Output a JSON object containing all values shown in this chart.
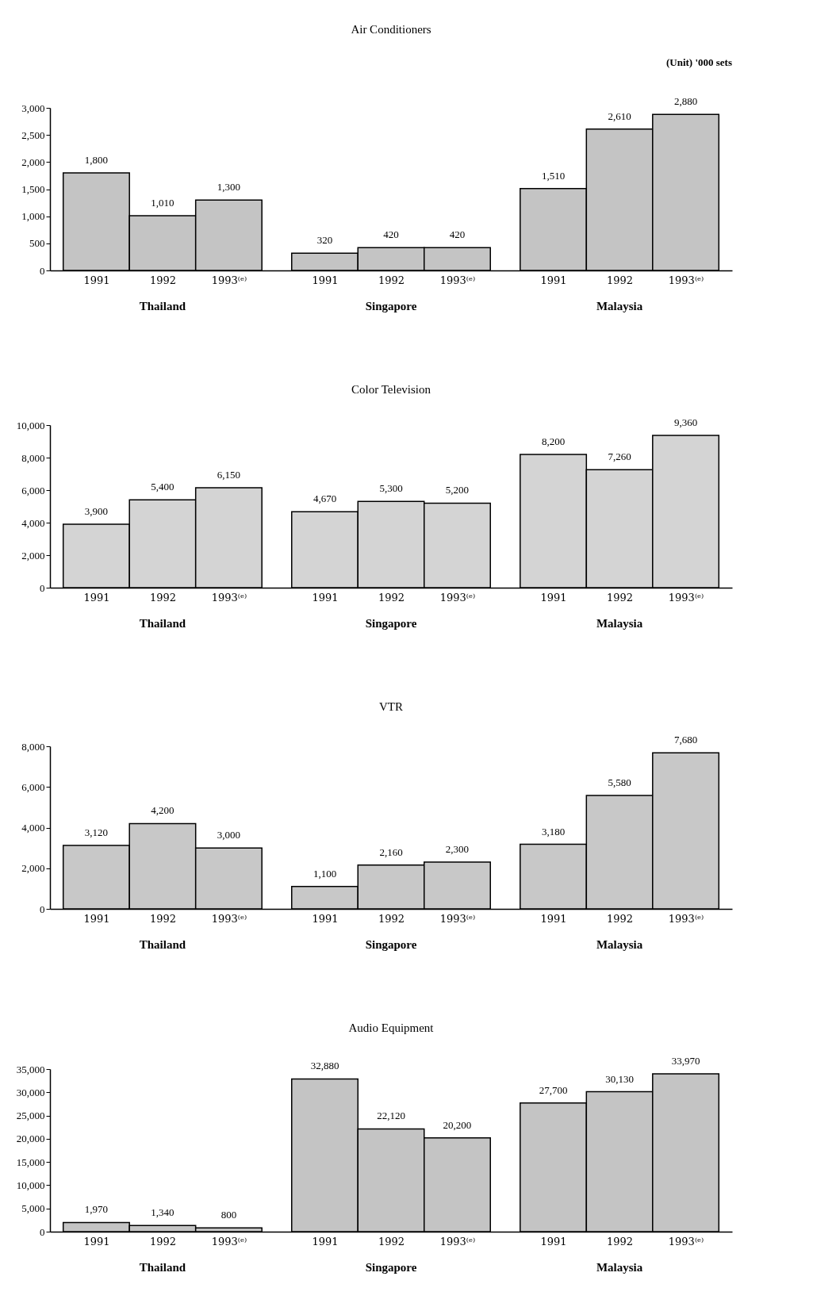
{
  "chart_data": [
    {
      "type": "bar",
      "title": "Air Conditioners",
      "subtitle": "(Unit) '000 sets",
      "categories": [
        "1991",
        "1992",
        "1993⁽ᵉ⁾",
        "1991",
        "1992",
        "1993⁽ᵉ⁾",
        "1991",
        "1992",
        "1993⁽ᵉ⁾"
      ],
      "values": [
        1800,
        1010,
        1300,
        320,
        420,
        420,
        1510,
        2610,
        2880
      ],
      "value_labels": [
        "1,800",
        "1,010",
        "1,300",
        "320",
        "420",
        "420",
        "1,510",
        "2,610",
        "2,880"
      ],
      "color": "#c4c4c4",
      "ylim": [
        0,
        3000
      ],
      "yticks": [
        {
          "value": 0,
          "label": "0"
        },
        500,
        {
          "value": 1000,
          "label": "1,000"
        },
        {
          "value": 1500,
          "label": "1,500"
        },
        {
          "value": 2000,
          "label": "2,000"
        },
        {
          "value": 2500,
          "label": "2,500"
        },
        {
          "value": 3000,
          "label": "3,000"
        }
      ],
      "annotations": [
        "Thailand",
        "Singapore",
        "Malaysia"
      ]
    },
    {
      "type": "bar",
      "title": "Color Television",
      "categories": [
        "1991",
        "1992",
        "1993⁽ᵉ⁾",
        "1991",
        "1992",
        "1993⁽ᵉ⁾",
        "1991",
        "1992",
        "1993⁽ᵉ⁾"
      ],
      "values": [
        3900,
        5400,
        6150,
        4670,
        5300,
        5200,
        8200,
        7260,
        9360
      ],
      "value_labels": [
        "3,900",
        "5,400",
        "6,150",
        "4,670",
        "5,300",
        "5,200",
        "8,200",
        "7,260",
        "9,360"
      ],
      "color": "#d4d4d4",
      "ylim": [
        0,
        10000
      ],
      "yticks": [
        {
          "value": 0,
          "label": "0"
        },
        {
          "value": 2000,
          "label": "2,000"
        },
        {
          "value": 4000,
          "label": "4,000"
        },
        {
          "value": 6000,
          "label": "6,000"
        },
        {
          "value": 8000,
          "label": "8,000"
        },
        {
          "value": 10000,
          "label": "10,000"
        }
      ],
      "annotations": [
        "Thailand",
        "Singapore",
        "Malaysia"
      ]
    },
    {
      "type": "bar",
      "title": "VTR",
      "categories": [
        "1991",
        "1992",
        "1993⁽ᵉ⁾",
        "1991",
        "1992",
        "1993⁽ᵉ⁾",
        "1991",
        "1992",
        "1993⁽ᵉ⁾"
      ],
      "values": [
        3120,
        4200,
        3000,
        1100,
        2160,
        2300,
        3180,
        5580,
        7680
      ],
      "value_labels": [
        "3,120",
        "4,200",
        "3,000",
        "1,100",
        "2,160",
        "2,300",
        "3,180",
        "5,580",
        "7,680"
      ],
      "color": "#c8c8c8",
      "ylim": [
        0,
        8000
      ],
      "yticks": [
        {
          "value": 0,
          "label": "0"
        },
        {
          "value": 2000,
          "label": "2,000"
        },
        {
          "value": 4000,
          "label": "4,000"
        },
        {
          "value": 6000,
          "label": "6,000"
        },
        {
          "value": 8000,
          "label": "8,000"
        }
      ],
      "annotations": [
        "Thailand",
        "Singapore",
        "Malaysia"
      ]
    },
    {
      "type": "bar",
      "title": "Audio Equipment",
      "categories": [
        "1991",
        "1992",
        "1993⁽ᵉ⁾",
        "1991",
        "1992",
        "1993⁽ᵉ⁾",
        "1991",
        "1992",
        "1993⁽ᵉ⁾"
      ],
      "values": [
        1970,
        1340,
        800,
        32880,
        22120,
        20200,
        27700,
        30130,
        33970
      ],
      "value_labels": [
        "1,970",
        "1,340",
        "800",
        "32,880",
        "22,120",
        "20,200",
        "27,700",
        "30,130",
        "33,970"
      ],
      "color": "#c4c4c4",
      "ylim": [
        0,
        35000
      ],
      "yticks": [
        {
          "value": 0,
          "label": "0"
        },
        {
          "value": 5000,
          "label": "5,000"
        },
        {
          "value": 10000,
          "label": "10,000"
        },
        {
          "value": 15000,
          "label": "15,000"
        },
        {
          "value": 20000,
          "label": "20,000"
        },
        {
          "value": 25000,
          "label": "25,000"
        },
        {
          "value": 30000,
          "label": "30,000"
        },
        {
          "value": 35000,
          "label": "35,000"
        }
      ],
      "annotations": [
        "Thailand",
        "Singapore",
        "Malaysia"
      ]
    }
  ]
}
